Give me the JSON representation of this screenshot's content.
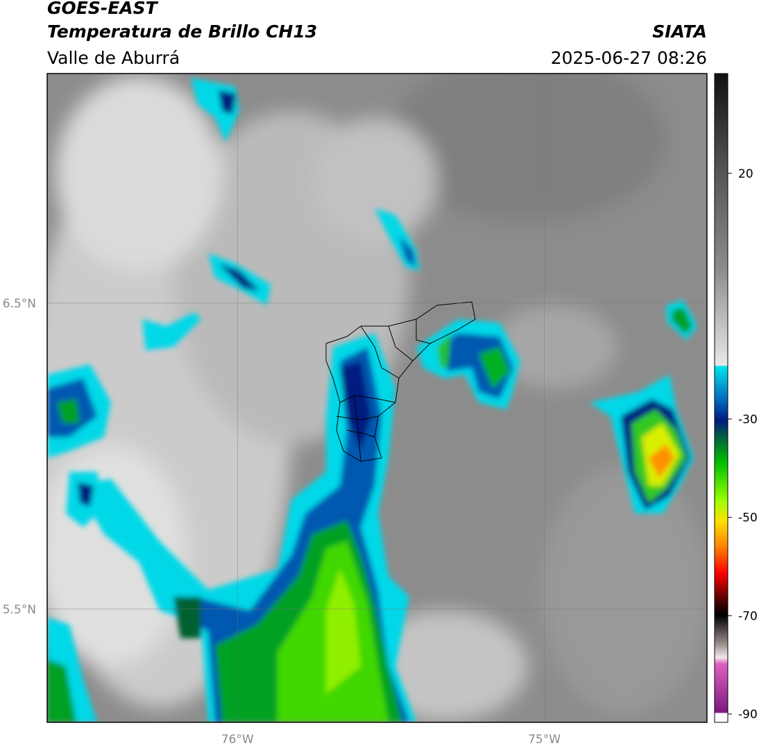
{
  "header": {
    "title": "GOES-EAST",
    "subtitle": "Temperatura de Brillo CH13",
    "region": "Valle de Aburrá",
    "source": "SIATA",
    "datetime": "2025-06-27 08:26"
  },
  "map": {
    "xlim": [
      -76.62,
      -74.47
    ],
    "ylim": [
      5.13,
      7.25
    ],
    "xticks": [
      {
        "value": -76,
        "label": "76°W"
      },
      {
        "value": -75,
        "label": "75°W"
      }
    ],
    "yticks": [
      {
        "value": 6.5,
        "label": "6.5°N"
      },
      {
        "value": 5.5,
        "label": "5.5°N"
      }
    ]
  },
  "colorbar": {
    "lim": [
      -91.7,
      40.3
    ],
    "ticks": [
      20,
      -30,
      -50,
      -70,
      -90
    ]
  }
}
